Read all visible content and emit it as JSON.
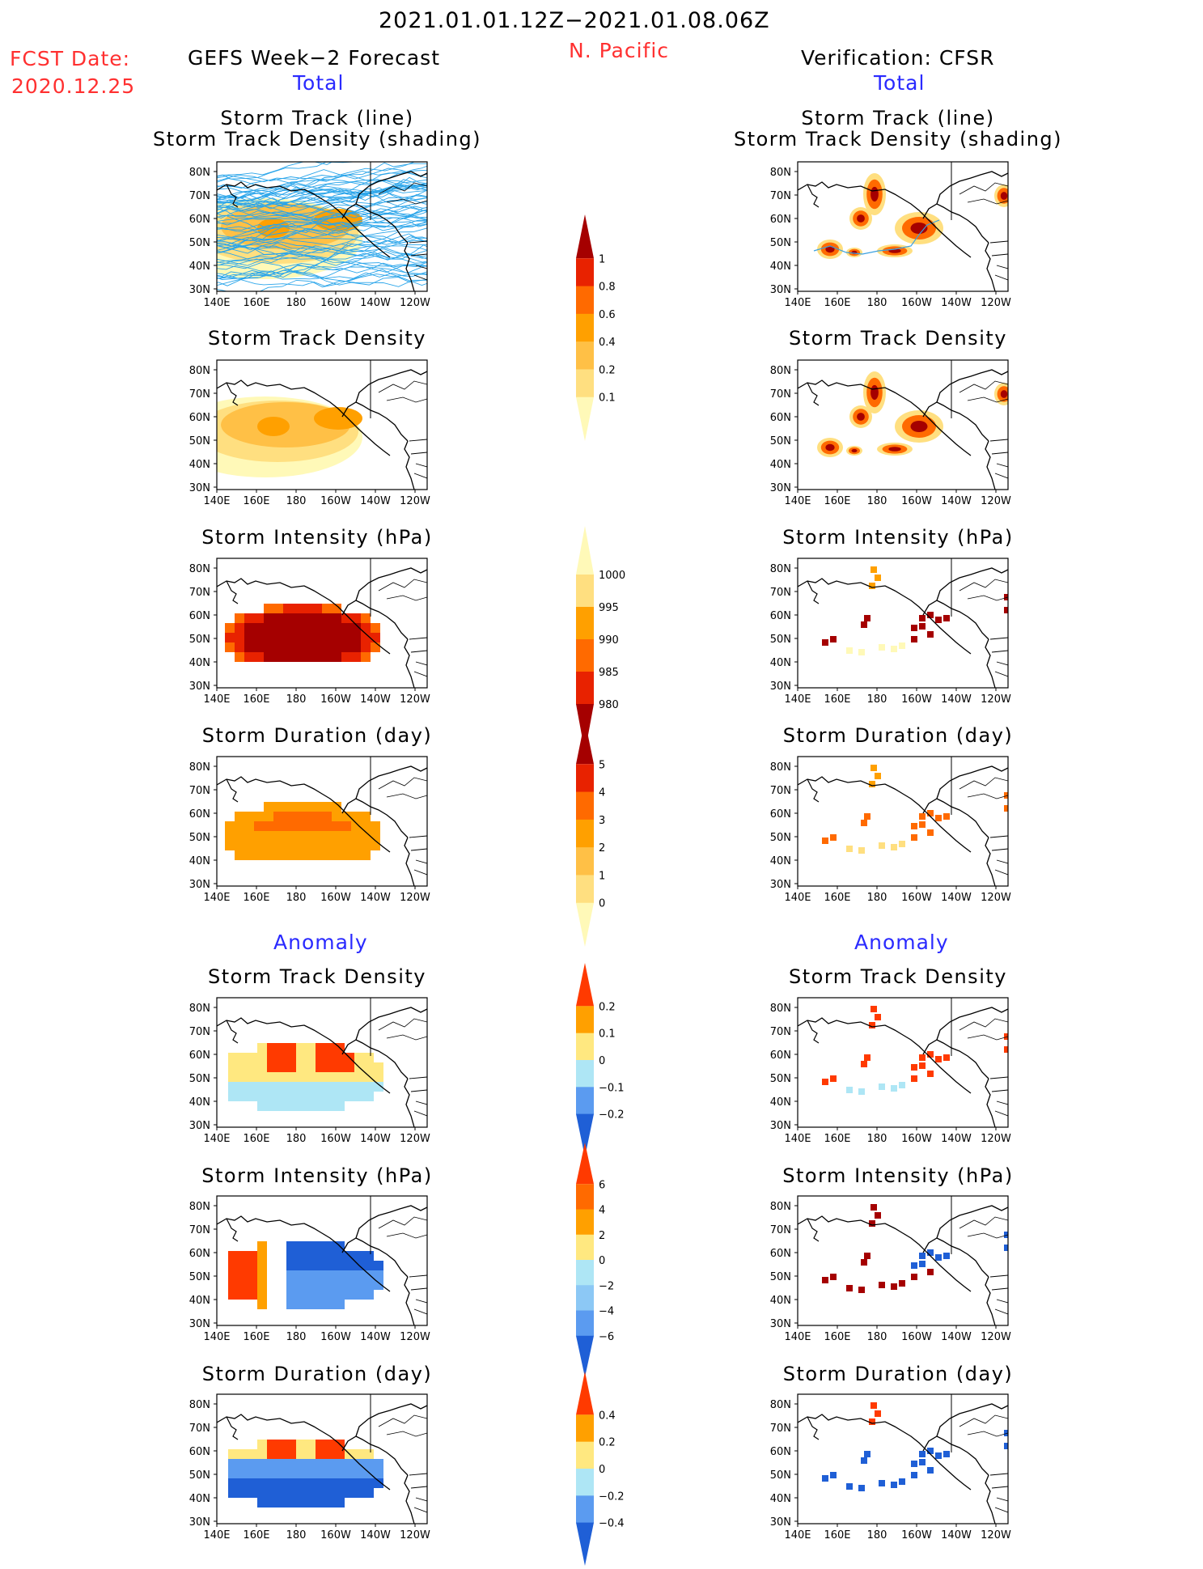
{
  "header": {
    "period": "2021.01.01.12Z−2021.01.08.06Z",
    "region": "N. Pacific",
    "fcst_label": "FCST Date:",
    "fcst_date": "2020.12.25",
    "left_title": "GEFS Week−2 Forecast",
    "right_title": "Verification: CFSR",
    "total": "Total",
    "anomaly": "Anomaly"
  },
  "panel_titles": {
    "track_line": "Storm Track (line)",
    "track_shading": "Storm Track Density (shading)",
    "density": "Storm Track Density",
    "intensity": "Storm Intensity (hPa)",
    "duration": "Storm Duration (day)"
  },
  "axes": {
    "lat_labels": [
      "80N",
      "70N",
      "60N",
      "50N",
      "40N",
      "30N"
    ],
    "lon_labels": [
      "140E",
      "160E",
      "180",
      "160W",
      "140W",
      "120W"
    ]
  },
  "colorbars": {
    "density": [
      "1",
      "0.8",
      "0.6",
      "0.4",
      "0.2",
      "0.1"
    ],
    "intensity": [
      "1000",
      "995",
      "990",
      "985",
      "980"
    ],
    "duration": [
      "5",
      "4",
      "3",
      "2",
      "1",
      "0"
    ],
    "density_anom": [
      "0.2",
      "0.1",
      "0",
      "−0.1",
      "−0.2"
    ],
    "intensity_anom": [
      "6",
      "4",
      "2",
      "0",
      "−2",
      "−4",
      "−6"
    ],
    "duration_anom": [
      "0.4",
      "0.2",
      "0",
      "−0.2",
      "−0.4"
    ]
  },
  "colors": {
    "warm": [
      "#fff9b8",
      "#ffdf80",
      "#ffc046",
      "#ffa000",
      "#ff6a00",
      "#e82200",
      "#a50000"
    ],
    "anom": [
      "#1f5fd6",
      "#5b9bf0",
      "#aee6f5",
      "#ffffff",
      "#ffe880",
      "#ffa000",
      "#ff3a00"
    ]
  }
}
